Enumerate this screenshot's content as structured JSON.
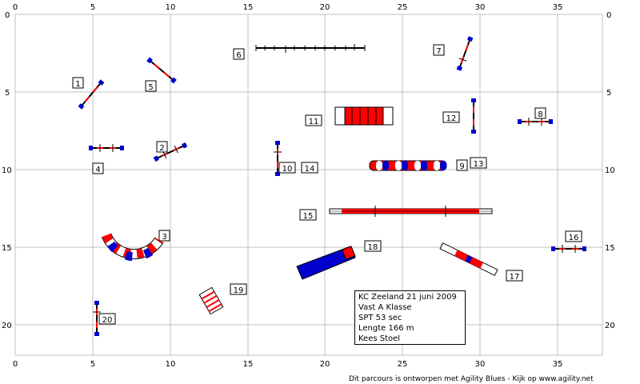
{
  "axes": {
    "x_ticks": [
      "0",
      "5",
      "10",
      "15",
      "20",
      "25",
      "30",
      "35"
    ],
    "y_ticks": [
      "0",
      "5",
      "10",
      "15",
      "20"
    ]
  },
  "obstacle_numbers": [
    "1",
    "2",
    "3",
    "4",
    "5",
    "6",
    "7",
    "8",
    "9",
    "10",
    "11",
    "12",
    "13",
    "14",
    "15",
    "16",
    "17",
    "18",
    "19",
    "20"
  ],
  "info": {
    "line1": "KC Zeeland 21 juni 2009",
    "line2": "Vast A Klasse",
    "line3": "SPT 53 sec",
    "line4": "Lengte 166 m",
    "line5": "Kees Stoel"
  },
  "footer": "Dit parcours is ontworpen met Agility Blues - Kijk op www.agility.net",
  "colors": {
    "blue": "#0000cc",
    "red": "#ff0000",
    "grid": "#c0c0c0",
    "black": "#000000"
  },
  "obstacle_icons": [
    "jump-hurdle-icon",
    "tunnel-icon",
    "tire-icon",
    "weave-poles-icon",
    "a-frame-icon",
    "dog-walk-icon",
    "seesaw-icon",
    "long-jump-icon",
    "wall-icon"
  ]
}
